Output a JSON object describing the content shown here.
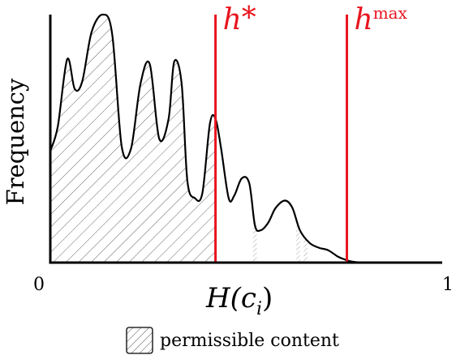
{
  "chart_data": {
    "type": "area",
    "xlabel": "H(c_i)",
    "xlabel_main": "H(c",
    "xlabel_sub": "i",
    "xlabel_close": ")",
    "ylabel": "Frequency",
    "xlim": [
      0,
      1
    ],
    "xticks": [
      "0",
      "1"
    ],
    "grid": false,
    "density_curve": {
      "x": [
        0.0,
        0.02,
        0.045,
        0.065,
        0.085,
        0.11,
        0.14,
        0.165,
        0.19,
        0.215,
        0.24,
        0.265,
        0.29,
        0.315,
        0.33,
        0.35,
        0.365,
        0.385,
        0.405,
        0.425,
        0.44,
        0.455,
        0.475,
        0.49,
        0.51,
        0.53,
        0.545,
        0.56,
        0.58,
        0.6,
        0.625,
        0.645,
        0.665,
        0.69,
        0.715,
        0.74,
        0.765,
        0.78,
        0.8,
        0.83,
        0.87,
        0.91,
        0.95,
        1.0
      ],
      "y": [
        0.45,
        0.55,
        0.82,
        0.7,
        0.73,
        0.93,
        1.0,
        0.92,
        0.47,
        0.46,
        0.72,
        0.8,
        0.5,
        0.58,
        0.81,
        0.72,
        0.33,
        0.26,
        0.28,
        0.56,
        0.58,
        0.46,
        0.26,
        0.27,
        0.34,
        0.32,
        0.15,
        0.13,
        0.16,
        0.22,
        0.25,
        0.22,
        0.13,
        0.08,
        0.06,
        0.05,
        0.025,
        0.015,
        0.005,
        0.0,
        0.0,
        0.0,
        0.0,
        0.0
      ]
    },
    "shaded_region": {
      "label": "permissible content",
      "x_range": [
        0.0,
        0.44
      ]
    },
    "extra_hatched_slivers": [
      [
        0.54,
        0.55
      ],
      [
        0.655,
        0.665
      ],
      [
        0.675,
        0.685
      ]
    ],
    "thresholds": [
      {
        "symbol": "h",
        "sup": "*",
        "x": 0.44,
        "color": "#e8141e"
      },
      {
        "symbol": "h",
        "sup": "max",
        "x": 0.79,
        "color": "#e8141e"
      }
    ],
    "legend": {
      "position": "bottom",
      "entries": [
        "permissible content"
      ]
    }
  },
  "legend_label": "permissible content"
}
